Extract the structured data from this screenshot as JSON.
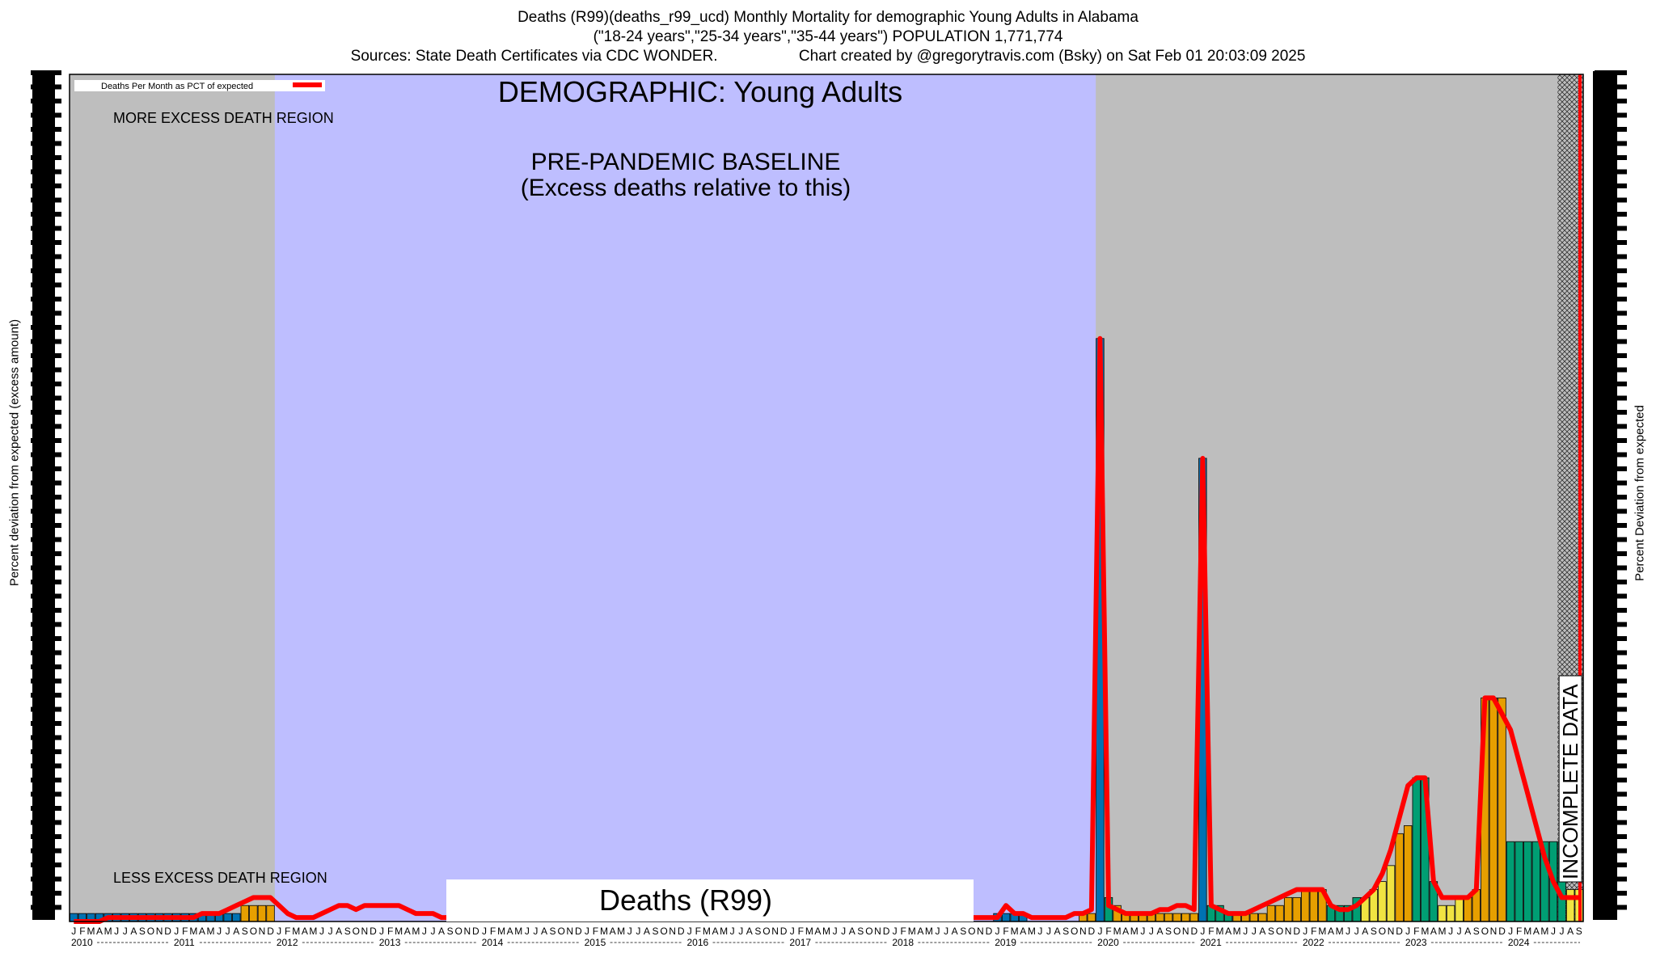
{
  "header": {
    "line1": "Deaths (R99)(deaths_r99_ucd) Monthly Mortality for demographic Young Adults in Alabama",
    "line2": "(\"18-24 years\",\"25-34 years\",\"35-44 years\") POPULATION 1,771,774",
    "line3": "Sources: State Death Certificates via CDC WONDER.                   Chart created by @gregorytravis.com (Bsky) on Sat Feb 01 20:03:09 2025"
  },
  "chart_data": {
    "type": "bar",
    "title": "DEMOGRAPHIC: Young Adults",
    "center_label": "Deaths (R99)",
    "ylabel_left": "Percent deviation from expected (excess amount)",
    "ylabel_right": "Percent Deviation from expected",
    "legend": {
      "label": "Deaths Per Month as PCT of expected",
      "position": "top-left",
      "color": "#ff0000"
    },
    "regions": {
      "baseline": {
        "label_line1": "PRE-PANDEMIC BASELINE",
        "label_line2": "(Excess deaths relative to this)",
        "from": "2012-01",
        "to": "2019-12",
        "color": "#bebeff"
      },
      "more_excess_label": "MORE EXCESS DEATH REGION",
      "less_excess_label": "LESS EXCESS DEATH REGION",
      "incomplete": {
        "label": "INCOMPLETE DATA",
        "from": "2024-08",
        "to": "2024-09"
      },
      "shaded_color": "#bebebe"
    },
    "start_month": "2010-01",
    "month_letters": [
      "J",
      "F",
      "M",
      "A",
      "M",
      "J",
      "J",
      "A",
      "S",
      "O",
      "N",
      "D"
    ],
    "years": [
      "2010",
      "2011",
      "2012",
      "2013",
      "2014",
      "2015",
      "2016",
      "2017",
      "2018",
      "2019",
      "2020",
      "2021",
      "2022",
      "2023",
      "2024"
    ],
    "last_year_months": [
      "J",
      "F",
      "M",
      "A",
      "M",
      "J",
      "J",
      "A",
      "S"
    ],
    "ylim": [
      0,
      100
    ],
    "bar_colors": {
      "blue": "#0072b2",
      "orange": "#e69f00",
      "green": "#009e73",
      "yellow": "#f0e442"
    },
    "values": [
      1,
      1,
      1,
      1,
      1,
      1,
      1,
      1,
      1,
      1,
      1,
      1,
      1,
      1,
      1,
      1,
      1,
      1,
      1,
      1,
      2,
      2,
      2,
      2,
      0,
      0,
      0,
      0,
      0,
      0,
      0,
      0,
      0,
      0,
      0,
      0,
      0,
      0,
      0,
      0,
      0,
      0,
      0,
      0,
      0,
      0,
      0,
      0,
      0,
      0,
      0,
      0,
      0,
      0,
      0,
      0,
      0,
      0,
      0,
      0,
      0,
      0,
      0,
      0,
      0,
      0,
      0,
      0,
      0,
      0,
      0,
      0,
      0,
      0,
      0,
      0,
      0,
      0,
      0,
      0,
      0,
      0,
      0,
      0,
      0,
      0,
      0,
      0,
      0,
      0,
      0,
      0,
      0,
      0,
      0,
      0,
      0,
      0,
      0,
      0,
      0,
      0,
      0,
      0,
      0,
      0,
      0,
      0,
      1,
      1,
      1,
      1,
      0,
      0,
      0,
      0,
      0,
      0,
      1,
      1,
      73,
      3,
      2,
      1,
      1,
      1,
      1,
      1,
      1,
      1,
      1,
      1,
      58,
      2,
      2,
      1,
      1,
      1,
      1,
      1,
      2,
      2,
      3,
      3,
      4,
      4,
      4,
      2,
      2,
      2,
      3,
      3,
      4,
      5,
      7,
      11,
      12,
      18,
      18,
      5,
      2,
      2,
      3,
      3,
      4,
      28,
      28,
      28,
      10,
      10,
      10,
      10,
      10,
      10,
      10,
      4,
      4
    ],
    "colors": [
      "b",
      "b",
      "b",
      "b",
      "b",
      "b",
      "b",
      "b",
      "b",
      "b",
      "b",
      "b",
      "b",
      "b",
      "b",
      "b",
      "b",
      "b",
      "b",
      "b",
      "o",
      "o",
      "o",
      "o",
      "b",
      "b",
      "b",
      "b",
      "b",
      "b",
      "b",
      "b",
      "b",
      "b",
      "b",
      "b",
      "b",
      "b",
      "b",
      "b",
      "b",
      "b",
      "b",
      "b",
      "b",
      "b",
      "b",
      "b",
      "b",
      "b",
      "b",
      "b",
      "b",
      "b",
      "b",
      "b",
      "b",
      "b",
      "b",
      "b",
      "b",
      "b",
      "b",
      "b",
      "b",
      "b",
      "b",
      "b",
      "b",
      "b",
      "b",
      "b",
      "b",
      "b",
      "b",
      "b",
      "b",
      "b",
      "b",
      "b",
      "b",
      "b",
      "b",
      "b",
      "b",
      "b",
      "b",
      "b",
      "b",
      "b",
      "b",
      "b",
      "b",
      "b",
      "b",
      "b",
      "b",
      "b",
      "b",
      "b",
      "b",
      "b",
      "b",
      "b",
      "b",
      "b",
      "b",
      "b",
      "b",
      "b",
      "b",
      "b",
      "b",
      "b",
      "b",
      "b",
      "o",
      "o",
      "o",
      "o",
      "b",
      "g",
      "o",
      "o",
      "o",
      "o",
      "o",
      "o",
      "o",
      "o",
      "o",
      "o",
      "b",
      "g",
      "g",
      "g",
      "o",
      "o",
      "o",
      "o",
      "o",
      "o",
      "o",
      "o",
      "o",
      "o",
      "o",
      "g",
      "g",
      "g",
      "g",
      "y",
      "y",
      "y",
      "y",
      "o",
      "o",
      "g",
      "g",
      "g",
      "y",
      "y",
      "y",
      "o",
      "o",
      "o",
      "o",
      "o",
      "g",
      "g",
      "g",
      "g",
      "g",
      "g",
      "g",
      "y",
      "y"
    ],
    "line": [
      0,
      0,
      0,
      0,
      0.5,
      0.5,
      0.5,
      0.5,
      0.5,
      0.5,
      0.5,
      0.5,
      0.5,
      0.5,
      0.5,
      1,
      1,
      1,
      1.5,
      2,
      2.5,
      3,
      3,
      3,
      2,
      1,
      0.5,
      0.5,
      0.5,
      1,
      1.5,
      2,
      2,
      1.5,
      2,
      2,
      2,
      2,
      2,
      1.5,
      1,
      1,
      1,
      0.5,
      0.5,
      0.5,
      0.5,
      0.5,
      0.5,
      0.5,
      0.5,
      0.5,
      0.5,
      0.5,
      0.5,
      0.5,
      0.5,
      0.5,
      0.5,
      0.5,
      0.5,
      0.5,
      0.5,
      0.5,
      0.5,
      0.5,
      0.5,
      0.5,
      0.5,
      0.5,
      0.5,
      0.5,
      0.5,
      0.5,
      0.5,
      0.5,
      0.5,
      0.5,
      0.5,
      0.5,
      0.5,
      0.5,
      0.5,
      0.5,
      0.5,
      0.5,
      0.5,
      0.5,
      0.5,
      0.5,
      0.5,
      0.5,
      0.5,
      0.5,
      0.5,
      0.5,
      0.5,
      0.5,
      0.5,
      0.5,
      0.5,
      0.5,
      0.5,
      0.5,
      0.5,
      0.5,
      0.5,
      0.5,
      0.5,
      2,
      1,
      1,
      0.5,
      0.5,
      0.5,
      0.5,
      0.5,
      1,
      1,
      1.5,
      73,
      2,
      1.5,
      1,
      1,
      1,
      1,
      1.5,
      1.5,
      2,
      2,
      1.5,
      58,
      2,
      1.5,
      1,
      1,
      1,
      1.5,
      2,
      2.5,
      3,
      3.5,
      4,
      4,
      4,
      4,
      2,
      1.5,
      1.5,
      2,
      3,
      4,
      6,
      9,
      13,
      17,
      18,
      18,
      5,
      3,
      3,
      3,
      3,
      4,
      28,
      28,
      26,
      24,
      20,
      16,
      12,
      8,
      5,
      3,
      3,
      3
    ]
  }
}
